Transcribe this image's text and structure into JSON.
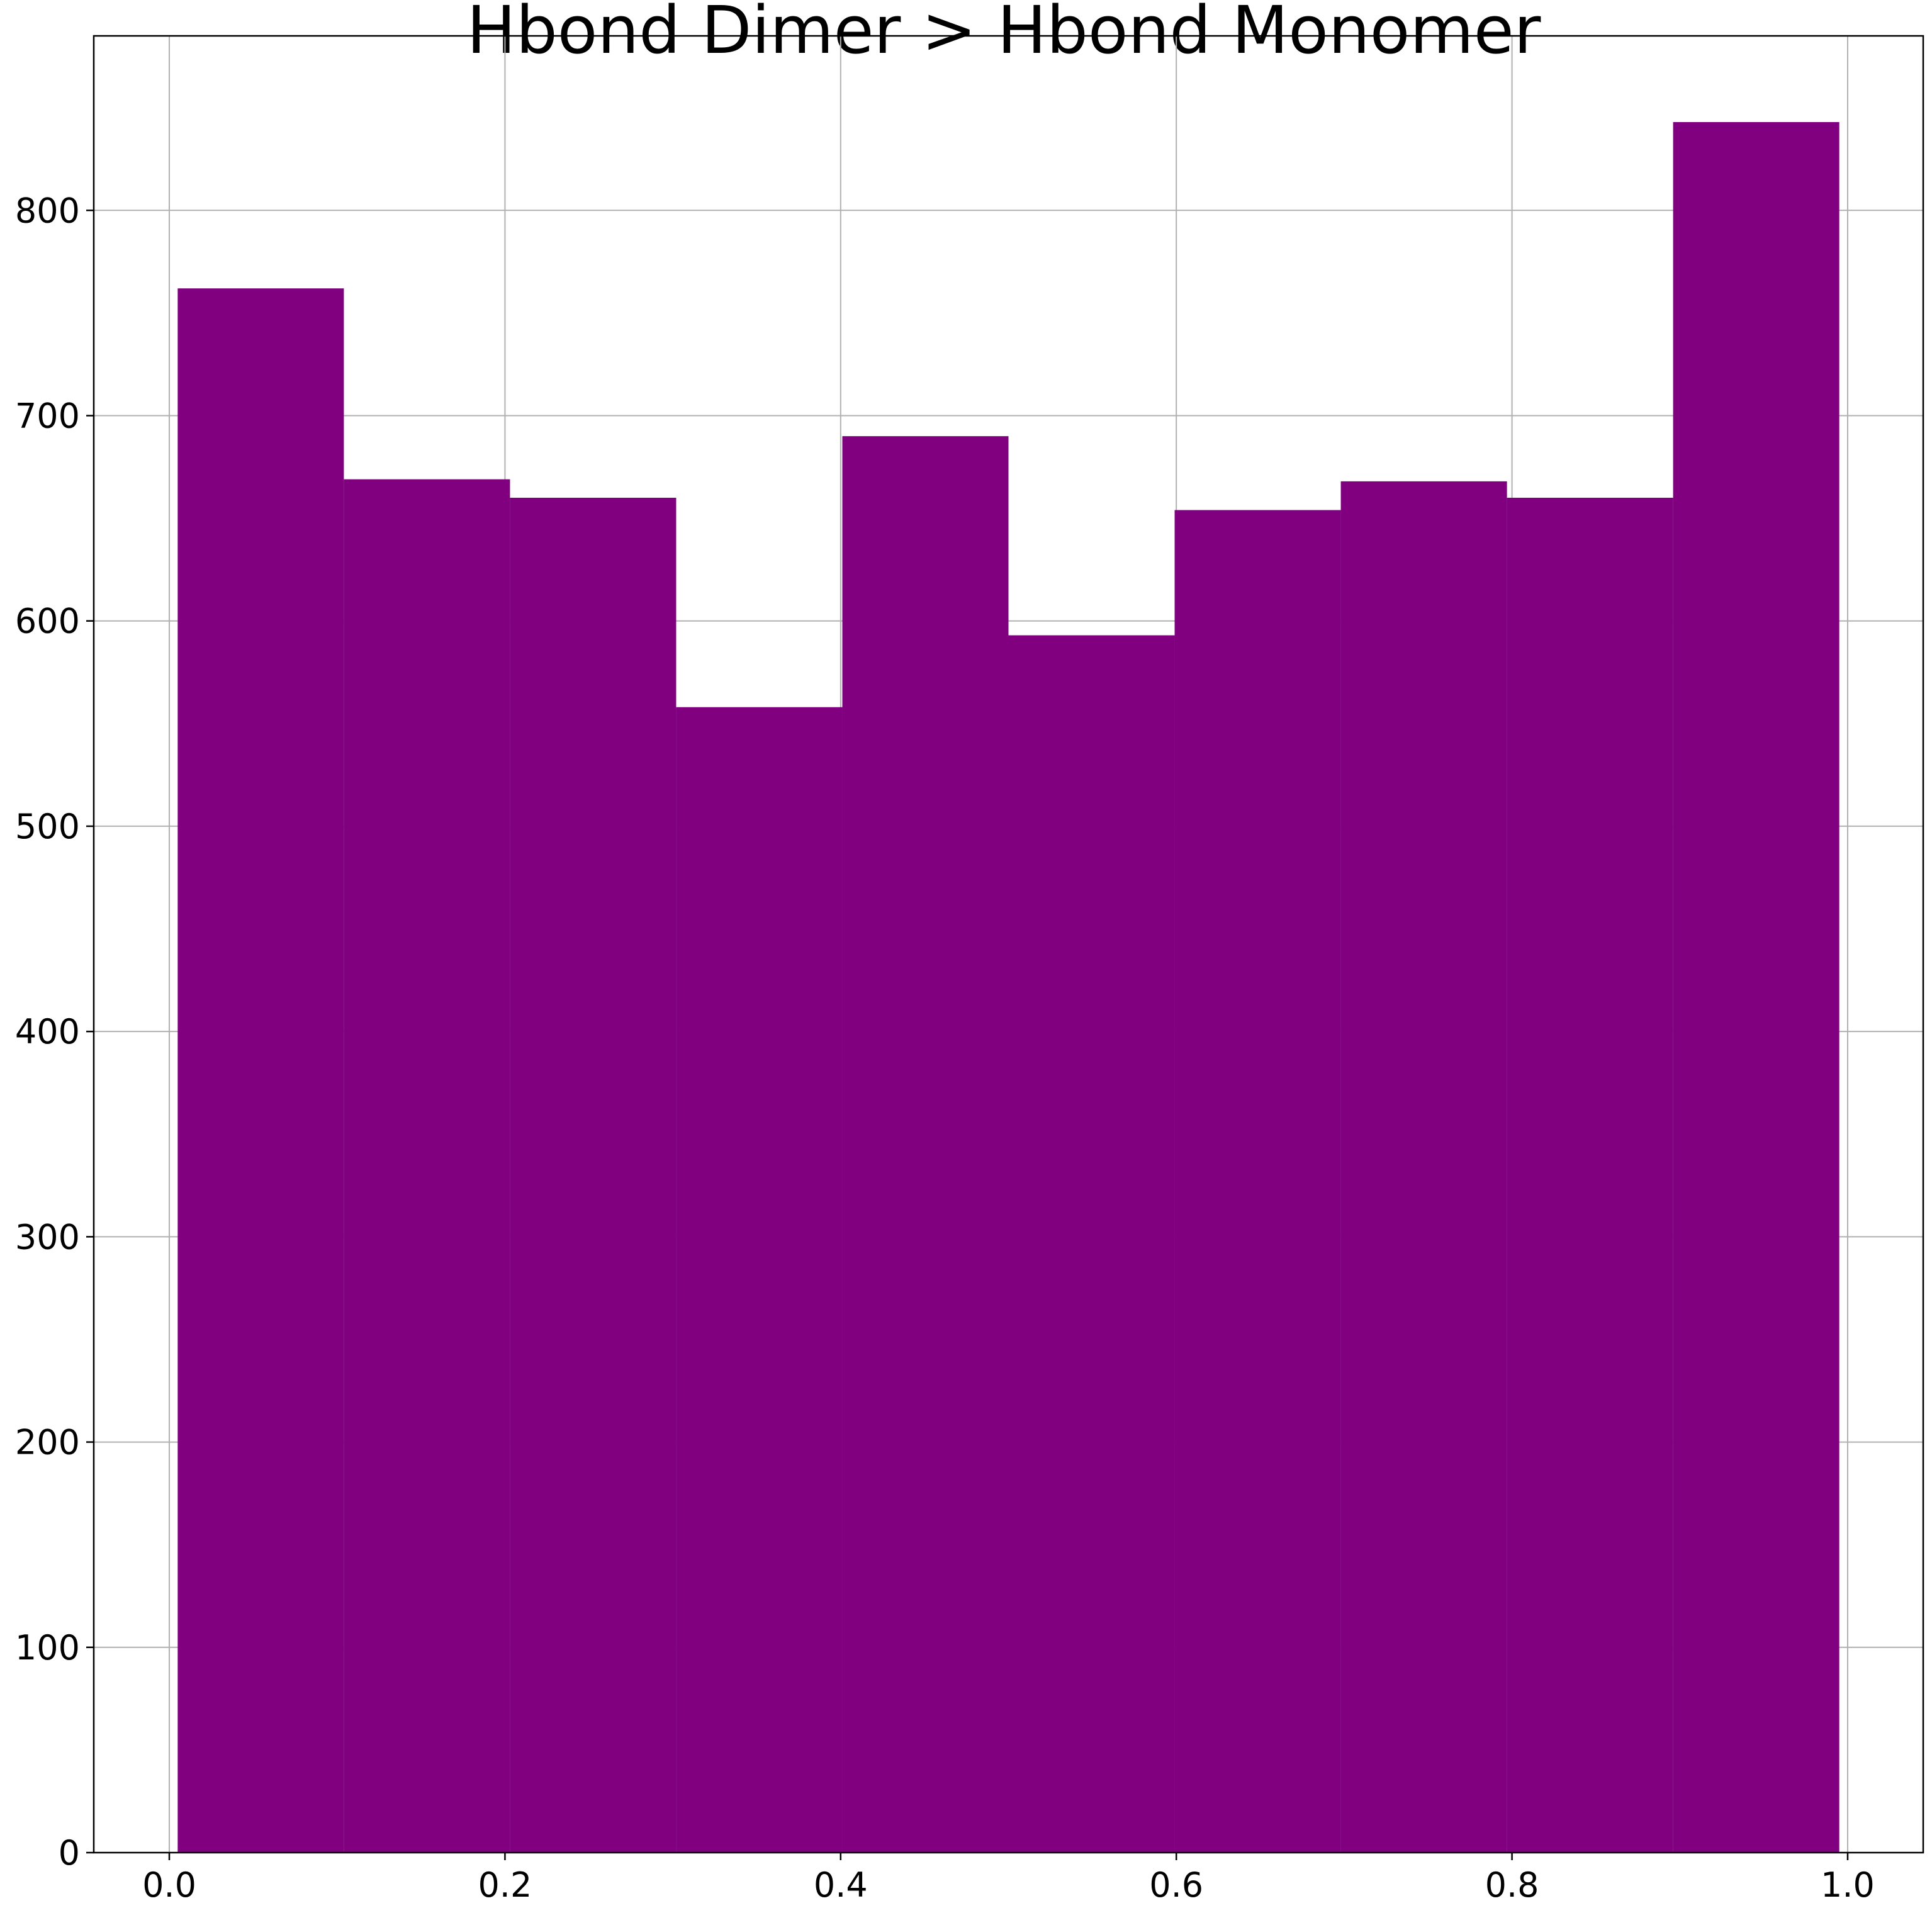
{
  "chart_data": {
    "type": "bar",
    "subtype": "histogram",
    "title": "Hbond Dimer > Hbond Monomer",
    "xlabel": "",
    "ylabel": "",
    "bins": [
      {
        "x0": 0.005,
        "x1": 0.104,
        "count": 762
      },
      {
        "x0": 0.104,
        "x1": 0.203,
        "count": 669
      },
      {
        "x0": 0.203,
        "x1": 0.302,
        "count": 660
      },
      {
        "x0": 0.302,
        "x1": 0.401,
        "count": 558
      },
      {
        "x0": 0.401,
        "x1": 0.5,
        "count": 690
      },
      {
        "x0": 0.5,
        "x1": 0.599,
        "count": 593
      },
      {
        "x0": 0.599,
        "x1": 0.698,
        "count": 654
      },
      {
        "x0": 0.698,
        "x1": 0.797,
        "count": 668
      },
      {
        "x0": 0.797,
        "x1": 0.896,
        "count": 660
      },
      {
        "x0": 0.896,
        "x1": 0.995,
        "count": 843
      }
    ],
    "xlim": [
      -0.045,
      1.045
    ],
    "ylim": [
      0,
      885
    ],
    "xticks": [
      0.0,
      0.2,
      0.4,
      0.6,
      0.8,
      1.0
    ],
    "xtick_labels": [
      "0.0",
      "0.2",
      "0.4",
      "0.6",
      "0.8",
      "1.0"
    ],
    "yticks": [
      0,
      100,
      200,
      300,
      400,
      500,
      600,
      700,
      800
    ],
    "ytick_labels": [
      "0",
      "100",
      "200",
      "300",
      "400",
      "500",
      "600",
      "700",
      "800"
    ],
    "bar_color": "#800080",
    "grid": true,
    "legend": "none"
  }
}
